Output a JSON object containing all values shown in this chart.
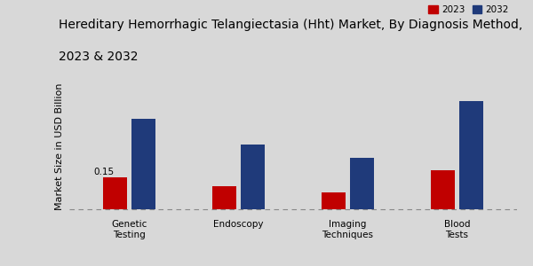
{
  "title_line1": "Hereditary Hemorrhagic Telangiectasia (Hht) Market, By Diagnosis Method,",
  "title_line2": "2023 & 2032",
  "ylabel": "Market Size in USD Billion",
  "categories": [
    "Genetic\nTesting",
    "Endoscopy",
    "Imaging\nTechniques",
    "Blood\nTests"
  ],
  "values_2023": [
    0.15,
    0.11,
    0.08,
    0.18
  ],
  "values_2032": [
    0.42,
    0.3,
    0.24,
    0.5
  ],
  "color_2023": "#c00000",
  "color_2032": "#1f3a7a",
  "bar_width": 0.22,
  "annotation_text": "0.15",
  "background_color_top": "#d8d8d8",
  "background_color_bot": "#e8e8e8",
  "legend_labels": [
    "2023",
    "2032"
  ],
  "title_fontsize": 10,
  "label_fontsize": 8,
  "tick_fontsize": 7.5
}
